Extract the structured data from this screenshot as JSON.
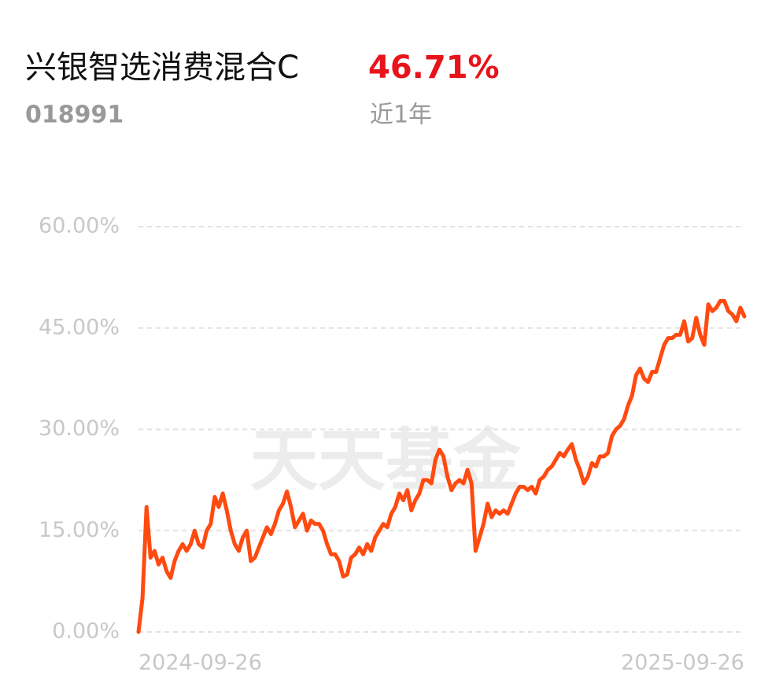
{
  "chart_data": {
    "type": "line",
    "title": "兴银智选消费混合C",
    "return": "46.71%",
    "code": "018991",
    "period": "近1年",
    "watermark": "天天基金",
    "categories": [
      "2024-09-26",
      null,
      null,
      null,
      null,
      null,
      null,
      null,
      null,
      null,
      null,
      null,
      null,
      null,
      null,
      null,
      null,
      null,
      null,
      null,
      null,
      null,
      null,
      null,
      null,
      null,
      null,
      null,
      null,
      null,
      null,
      null,
      null,
      null,
      null,
      null,
      null,
      null,
      null,
      null,
      null,
      null,
      null,
      null,
      null,
      null,
      null,
      null,
      null,
      null,
      null,
      null,
      null,
      null,
      null,
      null,
      null,
      null,
      null,
      null,
      null,
      null,
      null,
      null,
      null,
      null,
      null,
      null,
      null,
      null,
      null,
      null,
      null,
      null,
      null,
      null,
      null,
      null,
      null,
      null,
      null,
      null,
      null,
      null,
      null,
      null,
      null,
      null,
      null,
      null,
      null,
      null,
      null,
      null,
      null,
      null,
      null,
      null,
      null,
      null,
      null,
      null,
      null,
      null,
      null,
      null,
      null,
      null,
      null,
      null,
      null,
      null,
      null,
      null,
      null,
      null,
      null,
      null,
      null,
      null,
      null,
      null,
      null,
      null,
      null,
      null,
      null,
      null,
      null,
      null,
      null,
      null,
      null,
      null,
      null,
      null,
      null,
      null,
      null,
      null,
      null,
      null,
      null,
      null,
      null,
      null,
      null,
      null,
      null,
      null,
      null,
      "2025-09-26"
    ],
    "series": [
      {
        "color": "#ff4a10",
        "values": [
          0,
          5,
          18.5,
          11,
          12,
          10,
          11,
          9,
          8,
          10.5,
          12,
          13,
          12,
          13,
          15,
          13,
          12.5,
          15,
          16,
          20,
          18.5,
          20.5,
          18,
          15,
          13,
          12,
          14,
          15,
          10.5,
          11,
          12.5,
          14,
          15.5,
          14.5,
          16,
          18,
          19,
          20.8,
          18.5,
          15.5,
          16.5,
          17.5,
          15,
          16.5,
          16,
          16,
          15,
          13,
          11.5,
          11.5,
          10.5,
          8.2,
          8.5,
          11,
          11.5,
          12.5,
          11.5,
          13,
          12,
          14,
          15,
          16,
          15.5,
          17.5,
          18.5,
          20.5,
          19.5,
          21,
          18,
          19.5,
          20.5,
          22.5,
          22.5,
          22,
          25.5,
          27,
          26,
          23,
          21,
          22,
          22.5,
          22,
          24,
          22,
          12,
          14,
          16,
          19,
          17,
          18,
          17.5,
          18,
          17.5,
          19,
          20.5,
          21.5,
          21.5,
          21,
          21.5,
          20.5,
          22.5,
          23,
          24,
          24.5,
          25.5,
          26.5,
          26,
          27,
          27.8,
          25.5,
          24,
          22,
          23,
          25,
          24.5,
          26,
          26,
          26.5,
          29,
          30,
          30.5,
          31.5,
          33.5,
          35,
          38,
          39,
          37.5,
          37,
          38.5,
          38.5,
          40.5,
          42.5,
          43.5,
          43.5,
          44,
          44,
          46,
          43,
          43.5,
          46.5,
          44,
          42.5,
          48.5,
          47.5,
          48,
          49,
          49,
          47.5,
          47,
          46,
          48,
          46.71
        ]
      }
    ],
    "ylim": [
      0,
      60
    ],
    "yticks": [
      {
        "value": 0,
        "label": "0.00%"
      },
      {
        "value": 15,
        "label": "15.00%"
      },
      {
        "value": 30,
        "label": "30.00%"
      },
      {
        "value": 45,
        "label": "45.00%"
      },
      {
        "value": 60,
        "label": "60.00%"
      }
    ],
    "grid": true
  }
}
